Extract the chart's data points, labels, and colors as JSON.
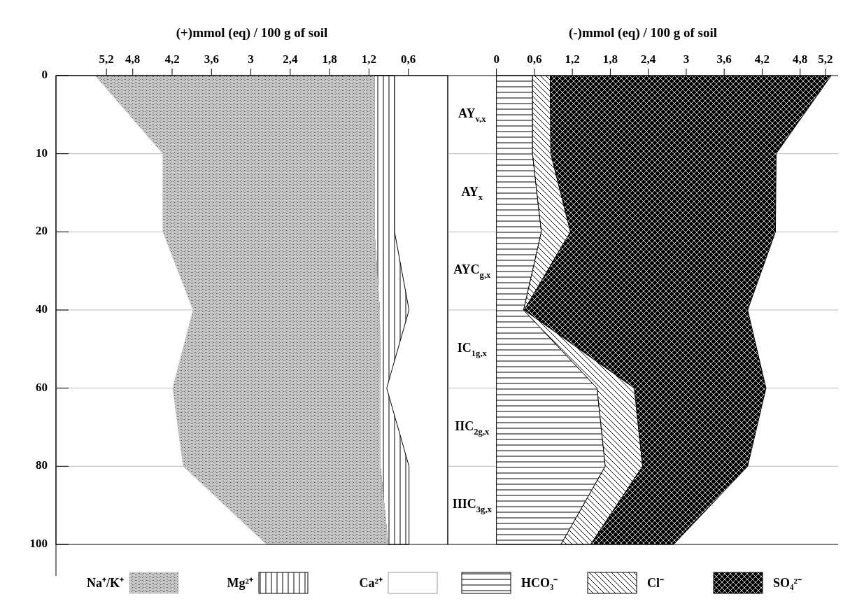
{
  "chart_data": [
    {
      "type": "area",
      "stacked": true,
      "orientation": "horizontal",
      "xlabel": "(+)mmol (eq) / 100 g of soil",
      "categories": [
        "0",
        "10",
        "20",
        "40",
        "60",
        "80",
        "100"
      ],
      "xlim": [
        5.97,
        0
      ],
      "xticks": [
        {
          "value": 5.2,
          "label": "5,2"
        },
        {
          "value": 4.8,
          "label": "4,8"
        },
        {
          "value": 4.2,
          "label": "4,2"
        },
        {
          "value": 3.6,
          "label": "3,6"
        },
        {
          "value": 3,
          "label": "3"
        },
        {
          "value": 2.4,
          "label": "2,4"
        },
        {
          "value": 1.8,
          "label": "1,8"
        },
        {
          "value": 1.2,
          "label": "1,2"
        },
        {
          "value": 0.6,
          "label": "0,6"
        }
      ],
      "grid": "y",
      "legend": "bottom",
      "series": [
        {
          "name": "Ca²⁺",
          "color": "#ffffff",
          "values": [
            0.81,
            0.81,
            0.81,
            0.59,
            0.93,
            0.59,
            0.59
          ]
        },
        {
          "name": "Mg²⁺",
          "color": "#000000",
          "values": [
            0.31,
            0.31,
            0.31,
            0.45,
            0.1,
            0.44,
            0.32
          ]
        },
        {
          "name": "Na⁺/K⁺",
          "color": "#c8c8c8",
          "values": [
            4.25,
            3.22,
            3.22,
            2.84,
            3.16,
            3.0,
            1.85
          ]
        }
      ]
    },
    {
      "type": "area",
      "stacked": true,
      "orientation": "horizontal",
      "xlabel": "(-)mmol (eq) / 100 g of soil",
      "categories": [
        "0",
        "10",
        "20",
        "40",
        "60",
        "80",
        "100"
      ],
      "xlim": [
        -0.77,
        5.4
      ],
      "xticks": [
        {
          "value": 0,
          "label": "0"
        },
        {
          "value": 0.6,
          "label": "0,6"
        },
        {
          "value": 1.2,
          "label": "1,2"
        },
        {
          "value": 1.8,
          "label": "1,8"
        },
        {
          "value": 2.4,
          "label": "2,4"
        },
        {
          "value": 3,
          "label": "3"
        },
        {
          "value": 3.6,
          "label": "3,6"
        },
        {
          "value": 4.2,
          "label": "4,2"
        },
        {
          "value": 4.8,
          "label": "4,8"
        },
        {
          "value": 5.2,
          "label": "5,2"
        }
      ],
      "grid": "y",
      "legend": "bottom",
      "tick_labels": "x",
      "annotations": [
        "AY$_{v,x}$",
        "AY$_{x}$",
        "AYC$_{g,x}$",
        "IC$_{1g,x}$",
        "IIC$_{2g,x}$",
        "IIIC$_{3g,x}$"
      ],
      "series": [
        {
          "name": "HCO₃⁻",
          "color": "#000000",
          "values": [
            0.57,
            0.57,
            0.71,
            0.43,
            1.59,
            1.72,
            1.02
          ]
        },
        {
          "name": "Cl⁻",
          "color": "#000000",
          "values": [
            0.28,
            0.29,
            0.46,
            0.01,
            0.59,
            0.59,
            0.47
          ]
        },
        {
          "name": "SO₄²⁻",
          "color": "#000000",
          "values": [
            4.44,
            3.56,
            3.24,
            3.53,
            2.08,
            1.66,
            1.31
          ]
        }
      ]
    }
  ]
}
